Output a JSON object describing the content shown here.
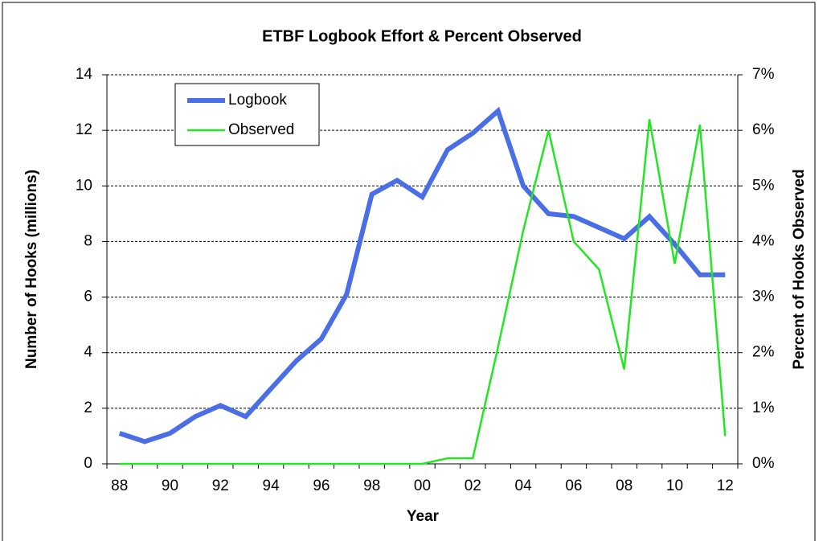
{
  "chart_data": {
    "type": "line",
    "title": "ETBF Logbook  Effort & Percent Observed",
    "x_label": "Year",
    "y_label": "Number of Hooks (millions)",
    "y2_label": "Percent  of Hooks Observed",
    "categories": [
      "88",
      null,
      "90",
      null,
      "92",
      null,
      "94",
      null,
      "96",
      null,
      "98",
      null,
      "00",
      null,
      "02",
      null,
      "04",
      null,
      "06",
      null,
      "08",
      null,
      "10",
      null,
      "12"
    ],
    "series": [
      {
        "name": "Logbook",
        "color": "#4a6ee6",
        "width": 6,
        "values": [
          1.1,
          0.8,
          1.1,
          1.7,
          2.1,
          1.7,
          2.7,
          3.7,
          4.5,
          6.1,
          9.7,
          10.2,
          9.6,
          11.3,
          11.9,
          12.7,
          10.0,
          9.0,
          8.9,
          8.5,
          8.1,
          8.9,
          7.9,
          6.8,
          6.8
        ]
      },
      {
        "name": "Observed",
        "color": "#22e622",
        "width": 2.5,
        "axis": "y2",
        "values": [
          0,
          0,
          0,
          0,
          0,
          0,
          0,
          0,
          0,
          0,
          0,
          0,
          0,
          0.1,
          0.1,
          2.1,
          4.2,
          6.0,
          4.0,
          3.5,
          1.7,
          6.2,
          3.6,
          6.1,
          0.5
        ]
      }
    ],
    "ylim": [
      0,
      14
    ],
    "yticks": [
      0,
      2,
      4,
      6,
      8,
      10,
      12,
      14
    ],
    "y2lim": [
      0,
      7
    ],
    "y2ticks": [
      {
        "value": 0,
        "label": "0%"
      },
      {
        "value": 1,
        "label": "1%"
      },
      {
        "value": 2,
        "label": "2%"
      },
      {
        "value": 3,
        "label": "3%"
      },
      {
        "value": 4,
        "label": "4%"
      },
      {
        "value": 5,
        "label": "5%"
      },
      {
        "value": 6,
        "label": "6%"
      },
      {
        "value": 7,
        "label": "7%"
      }
    ],
    "grid": true,
    "legend": "top-left"
  }
}
